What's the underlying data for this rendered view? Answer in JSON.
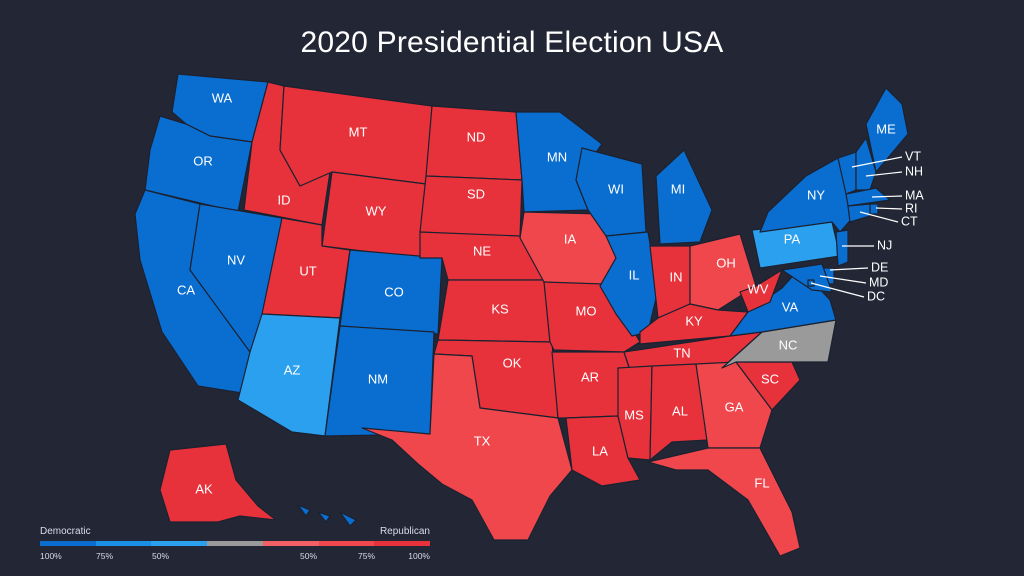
{
  "title": "2020 Presidential Election USA",
  "colors": {
    "background": "#232735",
    "dem_strong": "#0a6ed1",
    "dem_lean": "#1a8fe6",
    "dem_mid": "#2aa0ef",
    "tossup": "#9a9a9a",
    "rep_lean": "#f26065",
    "rep_mid": "#f0474c",
    "rep_strong": "#e8323b"
  },
  "states": [
    {
      "abbr": "WA",
      "party": "dem_strong"
    },
    {
      "abbr": "OR",
      "party": "dem_strong"
    },
    {
      "abbr": "CA",
      "party": "dem_strong"
    },
    {
      "abbr": "NV",
      "party": "dem_strong"
    },
    {
      "abbr": "ID",
      "party": "rep_strong"
    },
    {
      "abbr": "MT",
      "party": "rep_strong"
    },
    {
      "abbr": "WY",
      "party": "rep_strong"
    },
    {
      "abbr": "UT",
      "party": "rep_strong"
    },
    {
      "abbr": "AZ",
      "party": "dem_mid"
    },
    {
      "abbr": "CO",
      "party": "dem_strong"
    },
    {
      "abbr": "NM",
      "party": "dem_strong"
    },
    {
      "abbr": "ND",
      "party": "rep_strong"
    },
    {
      "abbr": "SD",
      "party": "rep_strong"
    },
    {
      "abbr": "NE",
      "party": "rep_strong"
    },
    {
      "abbr": "KS",
      "party": "rep_strong"
    },
    {
      "abbr": "OK",
      "party": "rep_strong"
    },
    {
      "abbr": "TX",
      "party": "rep_mid"
    },
    {
      "abbr": "MN",
      "party": "dem_strong"
    },
    {
      "abbr": "IA",
      "party": "rep_mid"
    },
    {
      "abbr": "MO",
      "party": "rep_strong"
    },
    {
      "abbr": "AR",
      "party": "rep_strong"
    },
    {
      "abbr": "LA",
      "party": "rep_strong"
    },
    {
      "abbr": "WI",
      "party": "dem_strong"
    },
    {
      "abbr": "IL",
      "party": "dem_strong"
    },
    {
      "abbr": "MI",
      "party": "dem_strong"
    },
    {
      "abbr": "IN",
      "party": "rep_strong"
    },
    {
      "abbr": "OH",
      "party": "rep_mid"
    },
    {
      "abbr": "KY",
      "party": "rep_strong"
    },
    {
      "abbr": "TN",
      "party": "rep_strong"
    },
    {
      "abbr": "MS",
      "party": "rep_strong"
    },
    {
      "abbr": "AL",
      "party": "rep_strong"
    },
    {
      "abbr": "GA",
      "party": "rep_mid"
    },
    {
      "abbr": "FL",
      "party": "rep_mid"
    },
    {
      "abbr": "SC",
      "party": "rep_strong"
    },
    {
      "abbr": "NC",
      "party": "tossup"
    },
    {
      "abbr": "VA",
      "party": "dem_strong"
    },
    {
      "abbr": "WV",
      "party": "rep_strong"
    },
    {
      "abbr": "PA",
      "party": "dem_mid"
    },
    {
      "abbr": "NY",
      "party": "dem_strong"
    },
    {
      "abbr": "ME",
      "party": "dem_strong"
    },
    {
      "abbr": "VT",
      "party": "dem_strong"
    },
    {
      "abbr": "NH",
      "party": "dem_strong"
    },
    {
      "abbr": "MA",
      "party": "dem_strong"
    },
    {
      "abbr": "RI",
      "party": "dem_strong"
    },
    {
      "abbr": "CT",
      "party": "dem_strong"
    },
    {
      "abbr": "NJ",
      "party": "dem_strong"
    },
    {
      "abbr": "DE",
      "party": "dem_strong"
    },
    {
      "abbr": "MD",
      "party": "dem_strong"
    },
    {
      "abbr": "DC",
      "party": "dem_strong"
    },
    {
      "abbr": "AK",
      "party": "rep_strong"
    },
    {
      "abbr": "HI",
      "party": "dem_strong"
    }
  ],
  "legend": {
    "left_label": "Democratic",
    "right_label": "Republican",
    "ticks": [
      "100%",
      "75%",
      "50%",
      "50%",
      "75%",
      "100%"
    ]
  }
}
